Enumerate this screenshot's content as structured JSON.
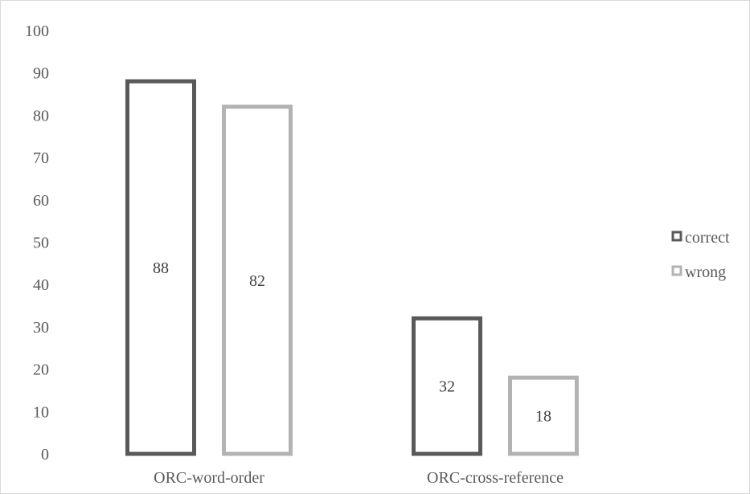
{
  "chart_data": {
    "type": "bar",
    "categories": [
      "ORC-word-order",
      "ORC-cross-reference"
    ],
    "series": [
      {
        "name": "correct",
        "values": [
          88,
          32
        ],
        "color": "#595959"
      },
      {
        "name": "wrong",
        "values": [
          82,
          18
        ],
        "color": "#b3b3b3"
      }
    ],
    "ylim": [
      0,
      100
    ],
    "yticks": [
      0,
      10,
      20,
      30,
      40,
      50,
      60,
      70,
      80,
      90,
      100
    ],
    "grid": false,
    "legend": "right",
    "bar_style": "outlined",
    "title": "",
    "xlabel": "",
    "ylabel": ""
  }
}
